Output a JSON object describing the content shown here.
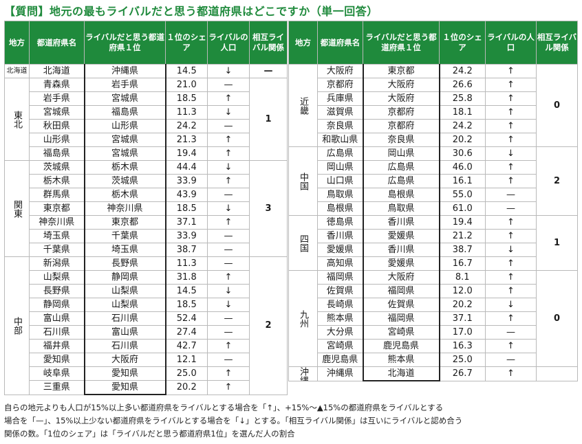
{
  "title": "【質問】地元の最もライバルだと思う都道府県はどこですか（単一回答）",
  "headers": [
    "地方",
    "都道府県名",
    "ライバルだと思う都道府県１位",
    "１位のシェア",
    "ライバルの人口",
    "相互ライバル関係"
  ],
  "left_table": [
    {
      "region": "北海道",
      "region_small": true,
      "mutual": "—",
      "rows": [
        {
          "pref": "北海道",
          "rival": "沖縄県",
          "share": "14.5",
          "pop": "↓"
        }
      ]
    },
    {
      "region": "東北",
      "mutual": "1",
      "rows": [
        {
          "pref": "青森県",
          "rival": "岩手県",
          "share": "21.0",
          "pop": "—"
        },
        {
          "pref": "岩手県",
          "rival": "宮城県",
          "share": "18.5",
          "pop": "↑"
        },
        {
          "pref": "宮城県",
          "rival": "福島県",
          "share": "11.3",
          "pop": "↓"
        },
        {
          "pref": "秋田県",
          "rival": "山形県",
          "share": "24.2",
          "pop": "—"
        },
        {
          "pref": "山形県",
          "rival": "宮城県",
          "share": "21.3",
          "pop": "↑"
        },
        {
          "pref": "福島県",
          "rival": "宮城県",
          "share": "19.4",
          "pop": "↑"
        }
      ]
    },
    {
      "region": "関東",
      "mutual": "3",
      "rows": [
        {
          "pref": "茨城県",
          "rival": "栃木県",
          "share": "44.4",
          "pop": "↓"
        },
        {
          "pref": "栃木県",
          "rival": "茨城県",
          "share": "33.9",
          "pop": "↑"
        },
        {
          "pref": "群馬県",
          "rival": "栃木県",
          "share": "43.9",
          "pop": "—"
        },
        {
          "pref": "東京都",
          "rival": "神奈川県",
          "share": "18.5",
          "pop": "↓"
        },
        {
          "pref": "神奈川県",
          "rival": "東京都",
          "share": "37.1",
          "pop": "↑"
        },
        {
          "pref": "埼玉県",
          "rival": "千葉県",
          "share": "33.9",
          "pop": "—"
        },
        {
          "pref": "千葉県",
          "rival": "埼玉県",
          "share": "38.7",
          "pop": "—"
        }
      ]
    },
    {
      "region": "中部",
      "mutual": "2",
      "rows": [
        {
          "pref": "新潟県",
          "rival": "長野県",
          "share": "11.3",
          "pop": "—"
        },
        {
          "pref": "山梨県",
          "rival": "静岡県",
          "share": "31.8",
          "pop": "↑"
        },
        {
          "pref": "長野県",
          "rival": "山梨県",
          "share": "14.5",
          "pop": "↓"
        },
        {
          "pref": "静岡県",
          "rival": "山梨県",
          "share": "18.5",
          "pop": "↓"
        },
        {
          "pref": "富山県",
          "rival": "石川県",
          "share": "52.4",
          "pop": "—"
        },
        {
          "pref": "石川県",
          "rival": "富山県",
          "share": "27.4",
          "pop": "—"
        },
        {
          "pref": "福井県",
          "rival": "石川県",
          "share": "42.7",
          "pop": "↑"
        },
        {
          "pref": "愛知県",
          "rival": "大阪府",
          "share": "12.1",
          "pop": "—"
        },
        {
          "pref": "岐阜県",
          "rival": "愛知県",
          "share": "25.0",
          "pop": "↑"
        },
        {
          "pref": "三重県",
          "rival": "愛知県",
          "share": "20.2",
          "pop": "↑"
        }
      ]
    }
  ],
  "right_table": [
    {
      "region": "近畿",
      "mutual": "0",
      "rows": [
        {
          "pref": "大阪府",
          "rival": "東京都",
          "share": "24.2",
          "pop": "↑"
        },
        {
          "pref": "京都府",
          "rival": "大阪府",
          "share": "26.6",
          "pop": "↑"
        },
        {
          "pref": "兵庫県",
          "rival": "大阪府",
          "share": "25.8",
          "pop": "↑"
        },
        {
          "pref": "滋賀県",
          "rival": "京都府",
          "share": "18.1",
          "pop": "↑"
        },
        {
          "pref": "奈良県",
          "rival": "京都府",
          "share": "24.2",
          "pop": "↑"
        },
        {
          "pref": "和歌山県",
          "rival": "奈良県",
          "share": "20.2",
          "pop": "↑"
        }
      ]
    },
    {
      "region": "中国",
      "mutual": "2",
      "rows": [
        {
          "pref": "広島県",
          "rival": "岡山県",
          "share": "30.6",
          "pop": "↓"
        },
        {
          "pref": "岡山県",
          "rival": "広島県",
          "share": "46.0",
          "pop": "↑"
        },
        {
          "pref": "山口県",
          "rival": "広島県",
          "share": "16.1",
          "pop": "↑"
        },
        {
          "pref": "鳥取県",
          "rival": "島根県",
          "share": "55.0",
          "pop": "—"
        },
        {
          "pref": "島根県",
          "rival": "鳥取県",
          "share": "61.0",
          "pop": "—"
        }
      ]
    },
    {
      "region": "四国",
      "mutual": "1",
      "rows": [
        {
          "pref": "徳島県",
          "rival": "香川県",
          "share": "19.4",
          "pop": "↑"
        },
        {
          "pref": "香川県",
          "rival": "愛媛県",
          "share": "21.2",
          "pop": "↑"
        },
        {
          "pref": "愛媛県",
          "rival": "香川県",
          "share": "38.7",
          "pop": "↓"
        },
        {
          "pref": "高知県",
          "rival": "愛媛県",
          "share": "16.7",
          "pop": "↑"
        }
      ]
    },
    {
      "region": "九州",
      "mutual": "0",
      "rows": [
        {
          "pref": "福岡県",
          "rival": "大阪府",
          "share": "8.1",
          "pop": "↑"
        },
        {
          "pref": "佐賀県",
          "rival": "福岡県",
          "share": "12.0",
          "pop": "↑"
        },
        {
          "pref": "長崎県",
          "rival": "佐賀県",
          "share": "20.2",
          "pop": "↓"
        },
        {
          "pref": "熊本県",
          "rival": "福岡県",
          "share": "37.1",
          "pop": "↑"
        },
        {
          "pref": "大分県",
          "rival": "宮崎県",
          "share": "17.0",
          "pop": "—"
        },
        {
          "pref": "宮崎県",
          "rival": "鹿児島県",
          "share": "16.3",
          "pop": "↑"
        },
        {
          "pref": "鹿児島県",
          "rival": "熊本県",
          "share": "25.0",
          "pop": "—"
        }
      ]
    },
    {
      "region": "沖縄",
      "mutual": "",
      "rows": [
        {
          "pref": "沖縄県",
          "rival": "北海道",
          "share": "26.7",
          "pop": "↑"
        }
      ]
    }
  ],
  "notes": [
    "自らの地元よりも人口が15%以上多い都道府県をライバルとする場合を「↑」、+15%〜▲15%の都道府県をライバルとする",
    "場合を「—」、15%以上少ない都道府県をライバルとする場合を「↓」とする。「相互ライバル関係」は互いにライバルと認め合う",
    "関係の数。「1位のシェア」は「ライバルだと思う都道府県1位」を選んだ人の割合"
  ]
}
